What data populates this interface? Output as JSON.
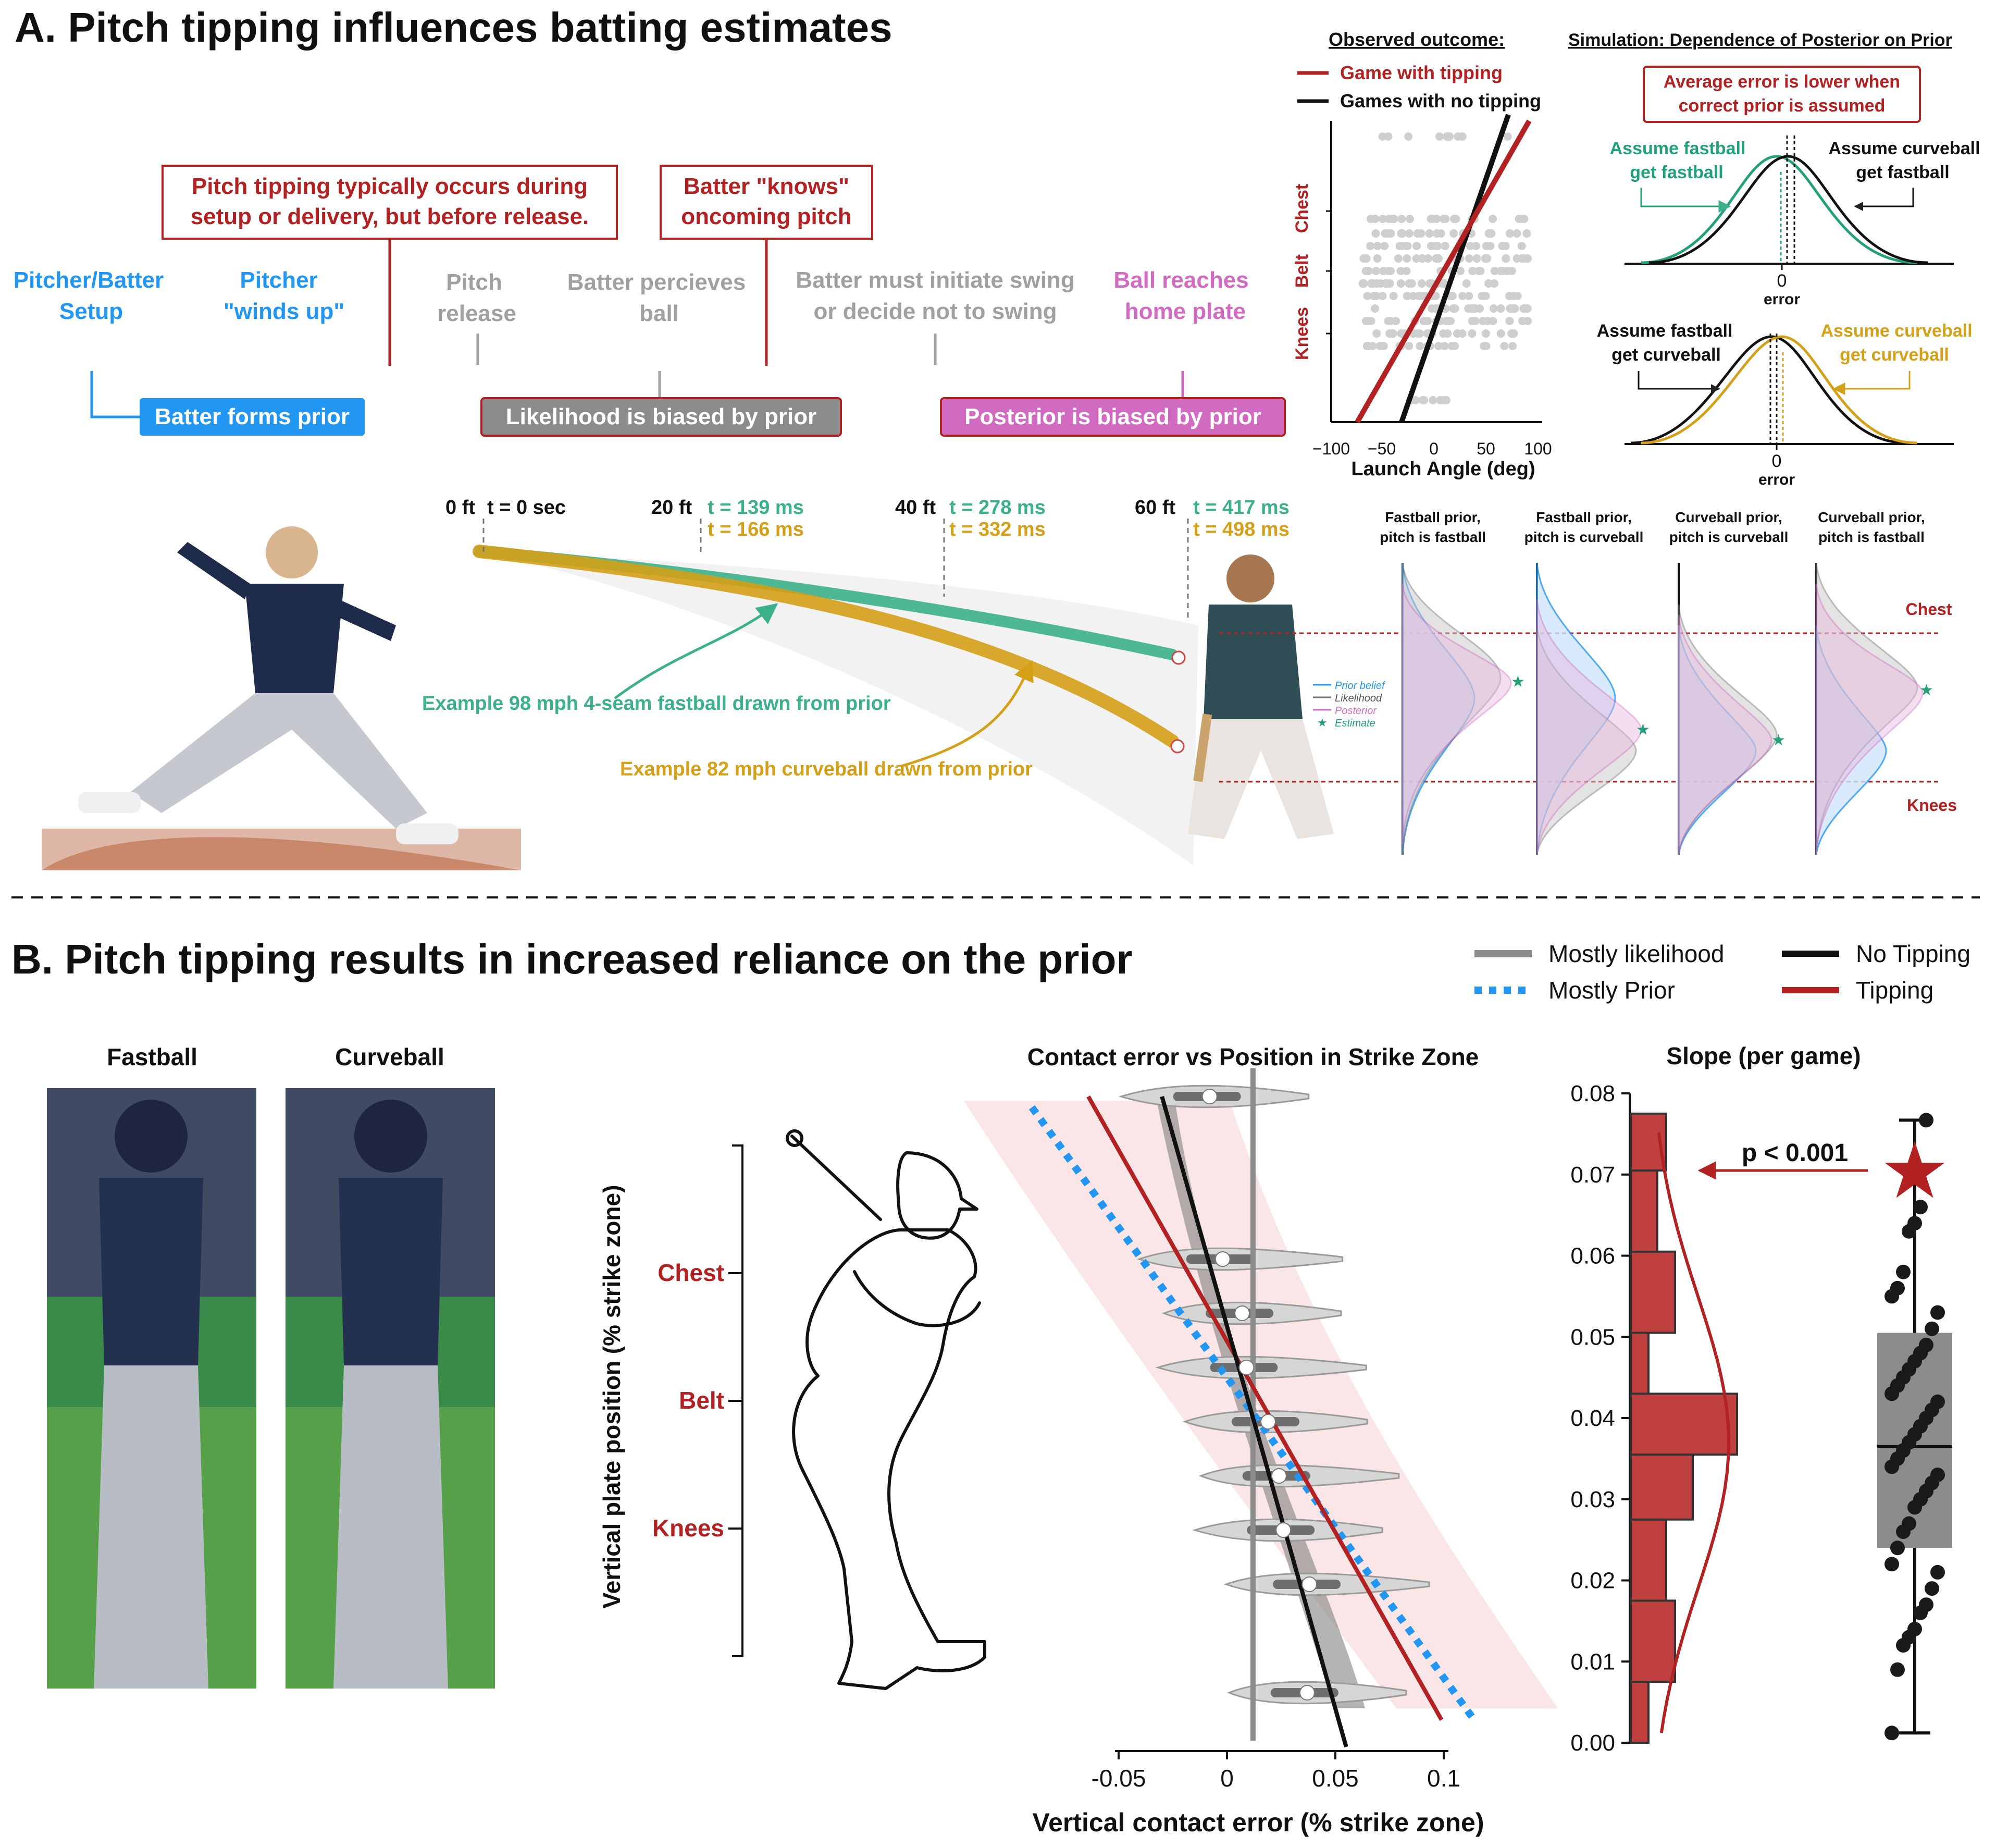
{
  "panel_a": {
    "title": "A. Pitch tipping influences batting estimates",
    "callouts": {
      "tipping_line1": "Pitch tipping typically occurs during",
      "tipping_line2": "setup or delivery, but before release.",
      "knows_line1": "Batter \"knows\"",
      "knows_line2": "oncoming pitch"
    },
    "timeline": [
      {
        "line1": "Pitcher/Batter",
        "line2": "Setup",
        "color": "#2196f3"
      },
      {
        "line1": "Pitcher",
        "line2": "\"winds up\"",
        "color": "#2196f3"
      },
      {
        "line1": "Pitch",
        "line2": "release",
        "color": "#a0a0a0"
      },
      {
        "line1": "Batter percieves",
        "line2": "ball",
        "color": "#a0a0a0"
      },
      {
        "line1": "Batter must initiate swing",
        "line2": "or decide not to swing",
        "color": "#a0a0a0"
      },
      {
        "line1": "Ball reaches",
        "line2": "home plate",
        "color": "#d16bc2"
      }
    ],
    "stage_boxes": {
      "prior": "Batter forms prior",
      "likelihood": "Likelihood is biased by prior",
      "posterior": "Posterior is biased by prior"
    },
    "distance_markers": [
      {
        "ft": "0 ft",
        "t_fast": "t = 0 sec",
        "t_curve": ""
      },
      {
        "ft": "20 ft",
        "t_fast": "t = 139 ms",
        "t_curve": "t = 166 ms"
      },
      {
        "ft": "40 ft",
        "t_fast": "t = 278 ms",
        "t_curve": "t = 332 ms"
      },
      {
        "ft": "60 ft",
        "t_fast": "t = 417 ms",
        "t_curve": "t = 498 ms"
      }
    ],
    "trajectory_labels": {
      "fastball": "Example 98 mph 4-seam fastball drawn from prior",
      "curveball": "Example 82 mph curveball drawn from prior"
    },
    "observed": {
      "heading": "Observed outcome:",
      "legend_tipping": "Game with tipping",
      "legend_no_tipping": "Games with no tipping",
      "y_ticks": [
        "Knees",
        "Belt",
        "Chest"
      ],
      "x_ticks": [
        "−100",
        "−50",
        "0",
        "50",
        "100"
      ],
      "xlabel": "Launch Angle (deg)"
    },
    "simulation": {
      "heading": "Simulation: Dependence of Posterior on Prior",
      "note_line1": "Average error is lower when",
      "note_line2": "correct prior is assumed",
      "top_left_line1": "Assume fastball",
      "top_left_line2": "get fastball",
      "top_right_line1": "Assume curveball",
      "top_right_line2": "get fastball",
      "bottom_left_line1": "Assume fastball",
      "bottom_left_line2": "get curveball",
      "bottom_right_line1": "Assume curveball",
      "bottom_right_line2": "get curveball",
      "zero_tick": "0",
      "xlabel": "error"
    },
    "distributions": {
      "columns": [
        {
          "line1": "Fastball prior,",
          "line2": "pitch is fastball"
        },
        {
          "line1": "Fastball prior,",
          "line2": "pitch is curveball"
        },
        {
          "line1": "Curveball prior,",
          "line2": "pitch is curveball"
        },
        {
          "line1": "Curveball prior,",
          "line2": "pitch is fastball"
        }
      ],
      "chest_label": "Chest",
      "knees_label": "Knees",
      "legend": [
        "Prior belief",
        "Likelihood",
        "Posterior",
        "Estimate"
      ]
    }
  },
  "panel_b": {
    "title": "B. Pitch tipping results in increased reliance on the prior",
    "legend": {
      "mostly_likelihood": "Mostly likelihood",
      "mostly_prior": "Mostly Prior",
      "no_tipping": "No Tipping",
      "tipping": "Tipping"
    },
    "photo_labels": {
      "fastball": "Fastball",
      "curveball": "Curveball"
    },
    "zone_labels": [
      "Chest",
      "Belt",
      "Knees"
    ],
    "ylabel": "Vertical plate position (% strike zone)"
  },
  "colors": {
    "tipping_red": "#b22222",
    "fastball_green": "#3cb08a",
    "curveball_gold": "#d4a017",
    "setup_blue": "#2196f3",
    "posterior_pink": "#d16bc2",
    "likelihood_gray": "#8c8c8c"
  },
  "chart_data": [
    {
      "type": "scatter",
      "id": "contact_error",
      "title": "Contact error vs Position in Strike Zone",
      "xlabel": "Vertical contact error (% strike zone)",
      "ylabel": "Vertical plate position (% strike zone)",
      "xlim": [
        -0.05,
        0.1
      ],
      "x_ticks": [
        "-0.05",
        "0",
        "0.05",
        "0.1"
      ],
      "x_tick_values": [
        -0.05,
        0.0,
        0.05,
        0.1
      ],
      "zero_line_x": 0.012,
      "violin_medians": [
        {
          "x": -0.008,
          "y": 1.0
        },
        {
          "x": -0.002,
          "y": 0.7
        },
        {
          "x": 0.007,
          "y": 0.6
        },
        {
          "x": 0.009,
          "y": 0.5
        },
        {
          "x": 0.019,
          "y": 0.4
        },
        {
          "x": 0.024,
          "y": 0.3
        },
        {
          "x": 0.026,
          "y": 0.2
        },
        {
          "x": 0.038,
          "y": 0.1
        },
        {
          "x": 0.037,
          "y": -0.1
        }
      ],
      "lines": {
        "no_tipping": [
          [
            -0.03,
            1.0
          ],
          [
            0.055,
            -0.2
          ]
        ],
        "tipping": [
          [
            -0.064,
            1.0
          ],
          [
            0.099,
            -0.15
          ]
        ],
        "mostly_prior": [
          [
            -0.09,
            0.98
          ],
          [
            0.114,
            -0.15
          ]
        ]
      }
    },
    {
      "type": "bar",
      "id": "slope_per_game",
      "title": "Slope (per game)",
      "ylim": [
        0.0,
        0.08
      ],
      "y_ticks": [
        "0.00",
        "0.01",
        "0.02",
        "0.03",
        "0.04",
        "0.05",
        "0.06",
        "0.07",
        "0.08"
      ],
      "y_tick_values": [
        0.0,
        0.01,
        0.02,
        0.03,
        0.04,
        0.05,
        0.06,
        0.07,
        0.08
      ],
      "histogram": [
        {
          "bin": [
            0.0,
            0.0075
          ],
          "count": 2
        },
        {
          "bin": [
            0.0075,
            0.0175
          ],
          "count": 5
        },
        {
          "bin": [
            0.0175,
            0.0275
          ],
          "count": 4
        },
        {
          "bin": [
            0.0275,
            0.0355
          ],
          "count": 7
        },
        {
          "bin": [
            0.0355,
            0.043
          ],
          "count": 12
        },
        {
          "bin": [
            0.043,
            0.0505
          ],
          "count": 2
        },
        {
          "bin": [
            0.0505,
            0.0605
          ],
          "count": 5
        },
        {
          "bin": [
            0.0605,
            0.0705
          ],
          "count": 3
        },
        {
          "bin": [
            0.0705,
            0.0775
          ],
          "count": 4
        }
      ],
      "box": {
        "q1": 0.024,
        "median": 0.0365,
        "q3": 0.0505,
        "min": 0.0012,
        "max": 0.0767
      },
      "points": [
        0.0012,
        0.009,
        0.012,
        0.013,
        0.014,
        0.016,
        0.017,
        0.019,
        0.021,
        0.022,
        0.024,
        0.026,
        0.027,
        0.029,
        0.03,
        0.031,
        0.032,
        0.033,
        0.034,
        0.035,
        0.036,
        0.037,
        0.038,
        0.039,
        0.04,
        0.041,
        0.042,
        0.043,
        0.044,
        0.045,
        0.046,
        0.047,
        0.048,
        0.049,
        0.051,
        0.053,
        0.055,
        0.056,
        0.058,
        0.063,
        0.064,
        0.066,
        0.0767
      ],
      "tipping_value": 0.0705,
      "annotation": "p < 0.001"
    }
  ]
}
